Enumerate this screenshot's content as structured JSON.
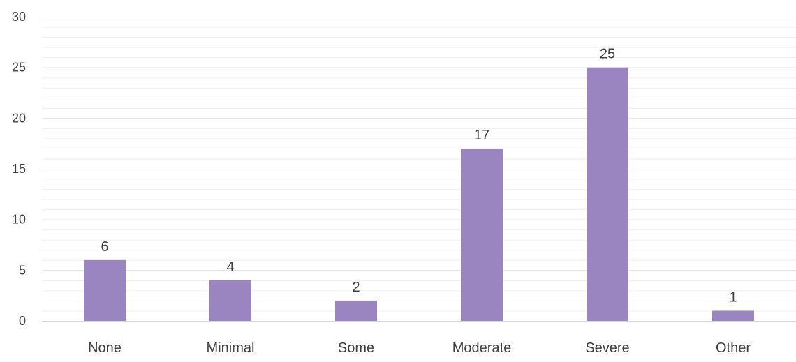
{
  "chart_data": {
    "type": "bar",
    "title": "",
    "xlabel": "",
    "ylabel": "",
    "categories": [
      "None",
      "Minimal",
      "Some",
      "Moderate",
      "Severe",
      "Other"
    ],
    "values": [
      6,
      4,
      2,
      17,
      25,
      1
    ],
    "data_labels": [
      "6",
      "4",
      "2",
      "17",
      "25",
      "1"
    ],
    "ylim": [
      0,
      30
    ],
    "y_ticks": [
      0,
      5,
      10,
      15,
      20,
      25,
      30
    ],
    "y_tick_labels": [
      "0",
      "5",
      "10",
      "15",
      "20",
      "25",
      "30"
    ],
    "minor_gridlines": true,
    "grid": true,
    "legend": "none",
    "colors": {
      "bar": "#9b85c1",
      "major_grid": "#d9d9d9",
      "minor_grid": "#efefef",
      "text": "#404040"
    }
  }
}
